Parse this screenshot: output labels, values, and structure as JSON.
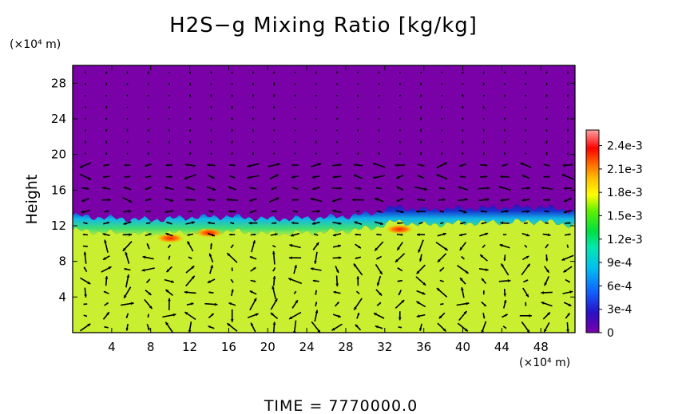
{
  "chart_data": {
    "type": "heatmap",
    "title": "H2S−g Mixing Ratio [kg/kg]",
    "ylabel": "Height",
    "xunit": "(×10⁴ m)",
    "yunit": "(×10⁴ m)",
    "xlim": [
      0,
      51.5
    ],
    "ylim": [
      0,
      30
    ],
    "xticks": [
      4,
      8,
      12,
      16,
      20,
      24,
      28,
      32,
      36,
      40,
      44,
      48
    ],
    "yticks": [
      4,
      8,
      12,
      16,
      20,
      24,
      28
    ],
    "colorbar": {
      "ticks": [
        "0",
        "3e-4",
        "6e-4",
        "9e-4",
        "1.2e-3",
        "1.5e-3",
        "1.8e-3",
        "2.1e-3",
        "2.4e-3"
      ],
      "range": [
        0,
        0.0026
      ]
    },
    "field": {
      "lower_value": 0.00175,
      "upper_value": 0,
      "interface_height": [
        [
          0,
          12.6
        ],
        [
          4,
          12.3
        ],
        [
          8,
          12.1
        ],
        [
          12,
          12.4
        ],
        [
          16,
          12.5
        ],
        [
          20,
          12.2
        ],
        [
          24,
          12.3
        ],
        [
          28,
          12.5
        ],
        [
          31,
          12.9
        ],
        [
          33,
          13.6
        ],
        [
          36,
          13.2
        ],
        [
          40,
          13.4
        ],
        [
          44,
          13.5
        ],
        [
          48,
          13.6
        ],
        [
          51.5,
          13.1
        ]
      ],
      "hotspots": [
        {
          "x": 10,
          "y": 10.6,
          "value": 0.00215
        },
        {
          "x": 14,
          "y": 11.2,
          "value": 0.0021
        },
        {
          "x": 33.5,
          "y": 11.6,
          "value": 0.0024
        }
      ]
    },
    "vectors": "wind velocity arrows",
    "time_label": "TIME  =  7770000.0"
  }
}
